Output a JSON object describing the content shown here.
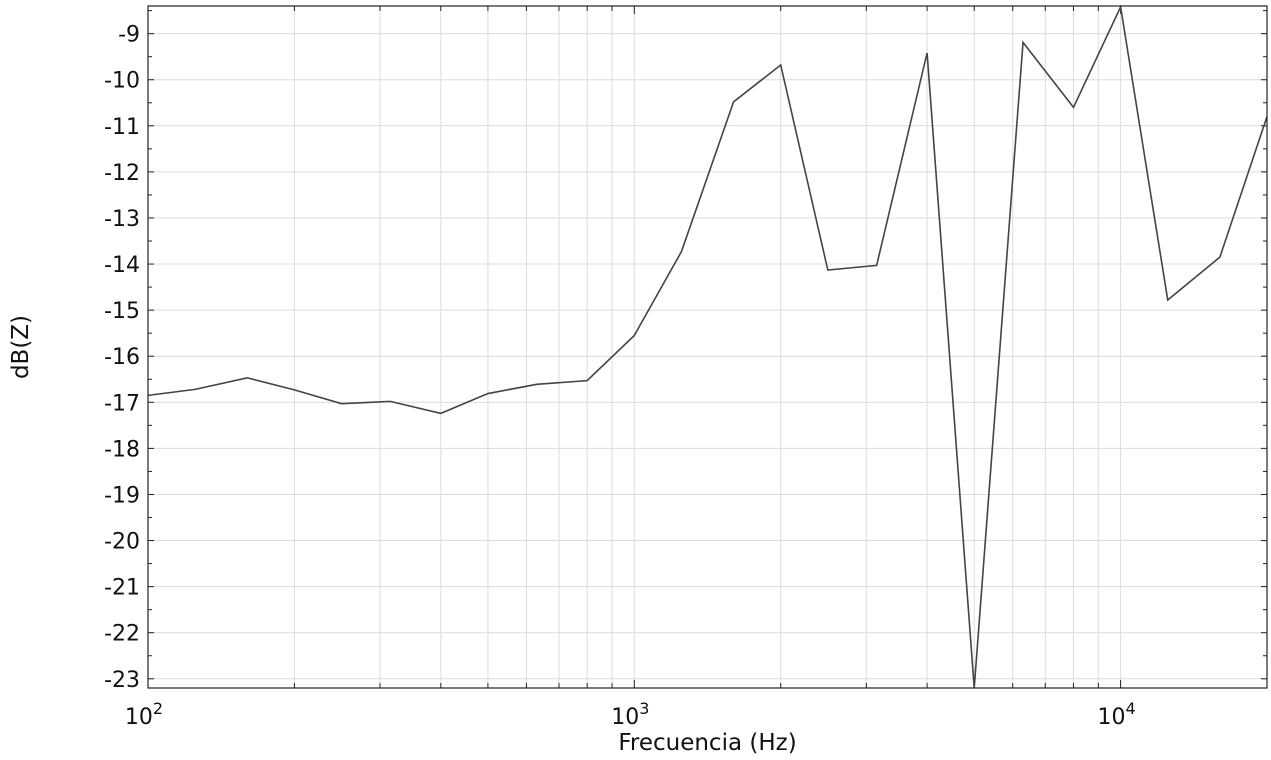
{
  "chart_data": {
    "type": "line",
    "x_scale": "log",
    "xlabel": "Frecuencia (Hz)",
    "ylabel": "dB(Z)",
    "xlim": [
      100,
      20000
    ],
    "ylim": [
      -23.2,
      -8.4
    ],
    "grid": true,
    "line_color": "#444444",
    "x_ticks": [
      {
        "value": 100,
        "base": "10",
        "exp": "2"
      },
      {
        "value": 1000,
        "base": "10",
        "exp": "3"
      },
      {
        "value": 10000,
        "base": "10",
        "exp": "4"
      }
    ],
    "y_ticks": [
      "-9",
      "-10",
      "-11",
      "-12",
      "-13",
      "-14",
      "-15",
      "-16",
      "-17",
      "-18",
      "-19",
      "-20",
      "-21",
      "-22",
      "-23"
    ],
    "series": [
      {
        "x": [
          100,
          125,
          160,
          200,
          250,
          315,
          400,
          500,
          630,
          800,
          1000,
          1250,
          1600,
          2000,
          2500,
          3150,
          4000,
          5000,
          6300,
          8000,
          10000,
          12500,
          16000,
          20000
        ],
        "y": [
          -16.85,
          -16.72,
          -16.47,
          -16.73,
          -17.03,
          -16.98,
          -17.24,
          -16.81,
          -16.61,
          -16.53,
          -15.55,
          -13.73,
          -10.48,
          -9.68,
          -14.13,
          -14.03,
          -9.42,
          -23.2,
          -9.19,
          -10.6,
          -8.42,
          -14.78,
          -13.85,
          -10.8
        ]
      }
    ]
  }
}
